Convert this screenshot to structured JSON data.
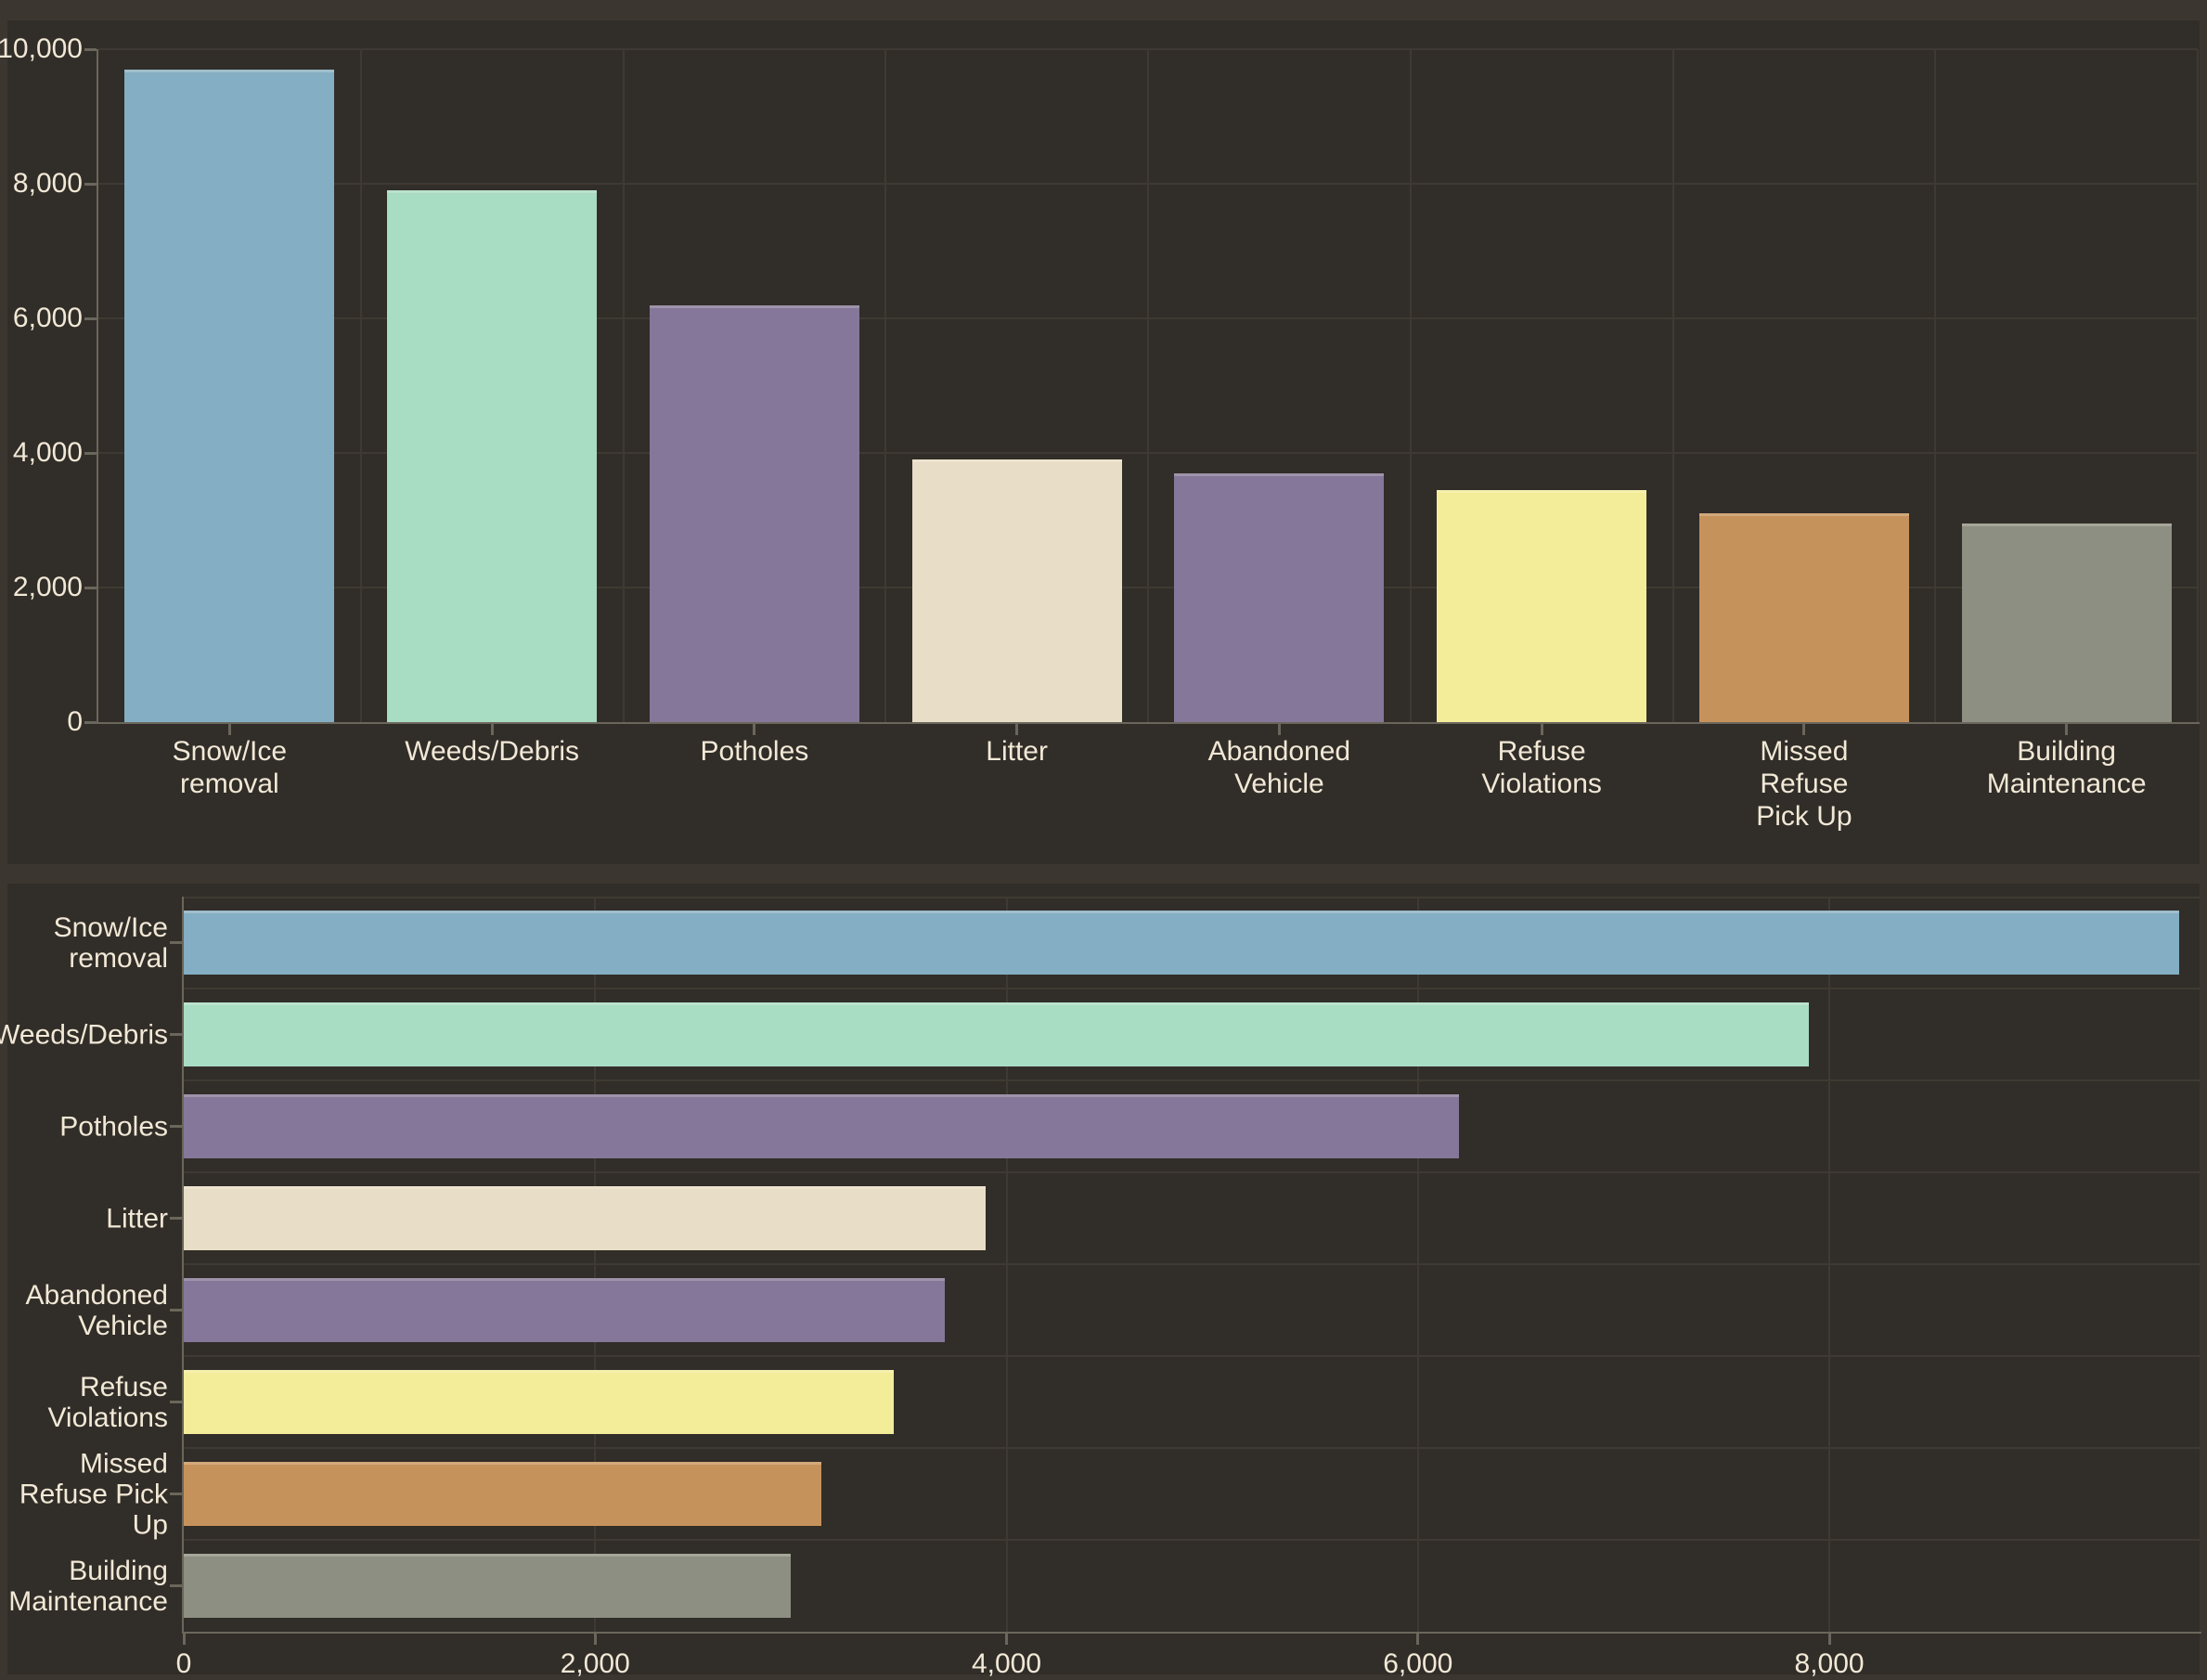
{
  "theme": {
    "page_bg": "#3b362f",
    "panel_bg": "#312d28",
    "grid_color": "#3e3a33",
    "axis_color": "#6b665b",
    "text_color": "#f1e8d6"
  },
  "chart_data": [
    {
      "type": "bar",
      "orientation": "vertical",
      "title": "",
      "xlabel": "",
      "ylabel": "",
      "categories": [
        "Snow/Ice\nremoval",
        "Weeds/Debris",
        "Potholes",
        "Litter",
        "Abandoned\nVehicle",
        "Refuse\nViolations",
        "Missed\nRefuse\nPick Up",
        "Building\nMaintenance"
      ],
      "values": [
        9700,
        7900,
        6200,
        3900,
        3700,
        3450,
        3100,
        2950
      ],
      "bar_colors": [
        "#84aec3",
        "#a8dcc3",
        "#857799",
        "#e8ddc6",
        "#857799",
        "#f3ed9a",
        "#c6925c",
        "#8d8f82"
      ],
      "ylim": [
        0,
        10000
      ],
      "y_ticks": [
        {
          "value": 0,
          "label": "0"
        },
        {
          "value": 2000,
          "label": "2,000"
        },
        {
          "value": 4000,
          "label": "4,000"
        },
        {
          "value": 6000,
          "label": "6,000"
        },
        {
          "value": 8000,
          "label": "8,000"
        },
        {
          "value": 10000,
          "label": "10,000"
        }
      ],
      "grid": true,
      "legend": false
    },
    {
      "type": "bar",
      "orientation": "horizontal",
      "title": "",
      "xlabel": "",
      "ylabel": "",
      "categories": [
        "Snow/Ice\nremoval",
        "Weeds/Debris",
        "Potholes",
        "Litter",
        "Abandoned\nVehicle",
        "Refuse\nViolations",
        "Missed\nRefuse Pick\nUp",
        "Building\nMaintenance"
      ],
      "values": [
        9700,
        7900,
        6200,
        3900,
        3700,
        3450,
        3100,
        2950
      ],
      "bar_colors": [
        "#84aec3",
        "#a8dcc3",
        "#857799",
        "#e8ddc6",
        "#857799",
        "#f3ed9a",
        "#c6925c",
        "#8d8f82"
      ],
      "xlim": [
        0,
        9800
      ],
      "x_ticks": [
        {
          "value": 0,
          "label": "0"
        },
        {
          "value": 2000,
          "label": "2,000"
        },
        {
          "value": 4000,
          "label": "4,000"
        },
        {
          "value": 6000,
          "label": "6,000"
        },
        {
          "value": 8000,
          "label": "8,000"
        }
      ],
      "grid": true,
      "legend": false
    }
  ]
}
